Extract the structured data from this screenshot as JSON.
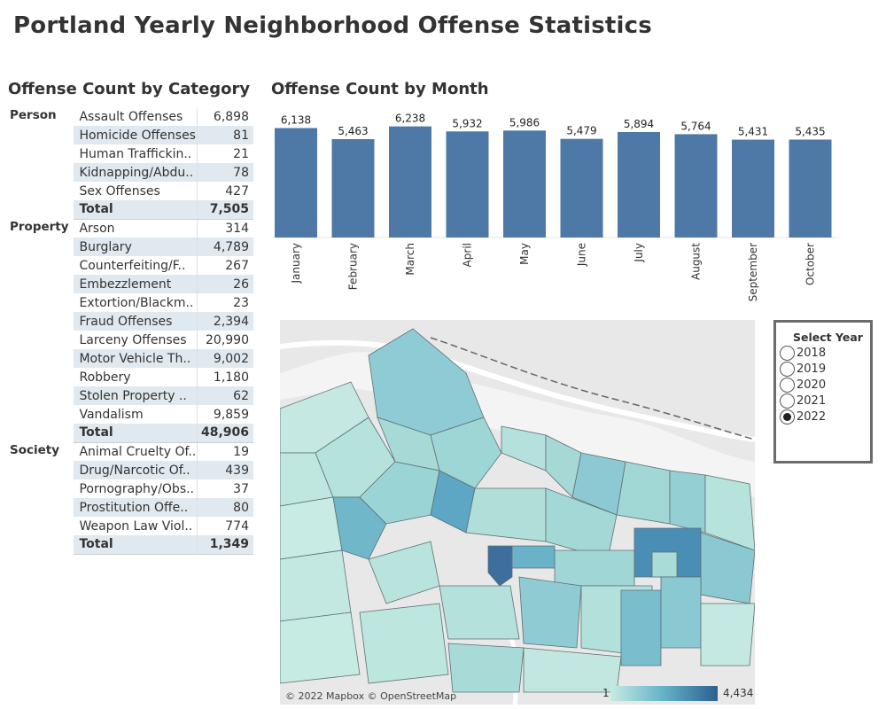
{
  "title": "Portland Yearly Neighborhood Offense Statistics",
  "category_panel": {
    "title": "Offense Count by Category",
    "groups": [
      {
        "name": "Person",
        "rows": [
          {
            "label": "Assault Offenses",
            "value": "6,898"
          },
          {
            "label": "Homicide Offenses",
            "value": "81"
          },
          {
            "label": "Human Traffickin..",
            "value": "21"
          },
          {
            "label": "Kidnapping/Abdu..",
            "value": "78"
          },
          {
            "label": "Sex Offenses",
            "value": "427"
          },
          {
            "label": "Total",
            "value": "7,505"
          }
        ]
      },
      {
        "name": "Property",
        "rows": [
          {
            "label": "Arson",
            "value": "314"
          },
          {
            "label": "Burglary",
            "value": "4,789"
          },
          {
            "label": "Counterfeiting/F..",
            "value": "267"
          },
          {
            "label": "Embezzlement",
            "value": "26"
          },
          {
            "label": "Extortion/Blackm..",
            "value": "23"
          },
          {
            "label": "Fraud Offenses",
            "value": "2,394"
          },
          {
            "label": "Larceny Offenses",
            "value": "20,990"
          },
          {
            "label": "Motor Vehicle Th..",
            "value": "9,002"
          },
          {
            "label": "Robbery",
            "value": "1,180"
          },
          {
            "label": "Stolen Property ..",
            "value": "62"
          },
          {
            "label": "Vandalism",
            "value": "9,859"
          },
          {
            "label": "Total",
            "value": "48,906"
          }
        ]
      },
      {
        "name": "Society",
        "rows": [
          {
            "label": "Animal Cruelty Of..",
            "value": "19"
          },
          {
            "label": "Drug/Narcotic Of..",
            "value": "439"
          },
          {
            "label": "Pornography/Obs..",
            "value": "37"
          },
          {
            "label": "Prostitution Offe..",
            "value": "80"
          },
          {
            "label": "Weapon Law Viol..",
            "value": "774"
          },
          {
            "label": "Total",
            "value": "1,349"
          }
        ]
      }
    ]
  },
  "month_panel": {
    "title": "Offense Count by Month"
  },
  "chart_data": {
    "type": "bar",
    "title": "Offense Count by Month",
    "categories": [
      "January",
      "February",
      "March",
      "April",
      "May",
      "June",
      "July",
      "August",
      "September",
      "October"
    ],
    "values": [
      6138,
      5463,
      6238,
      5932,
      5986,
      5479,
      5894,
      5764,
      5431,
      5435
    ],
    "value_labels": [
      "6,138",
      "5,463",
      "6,238",
      "5,932",
      "5,986",
      "5,479",
      "5,894",
      "5,764",
      "5,431",
      "5,435"
    ],
    "ylim": [
      0,
      6700
    ],
    "bar_color": "#4e79a7",
    "grid": false
  },
  "map": {
    "attribution": "© 2022 Mapbox © OpenStreetMap",
    "legend_min": "1",
    "legend_max": "4,434",
    "colors": {
      "low": "#c6ebe3",
      "mid": "#62b2c7",
      "high": "#2d5f8f"
    }
  },
  "year_filter": {
    "title": "Select Year",
    "options": [
      "2018",
      "2019",
      "2020",
      "2021",
      "2022"
    ],
    "selected": "2022"
  }
}
